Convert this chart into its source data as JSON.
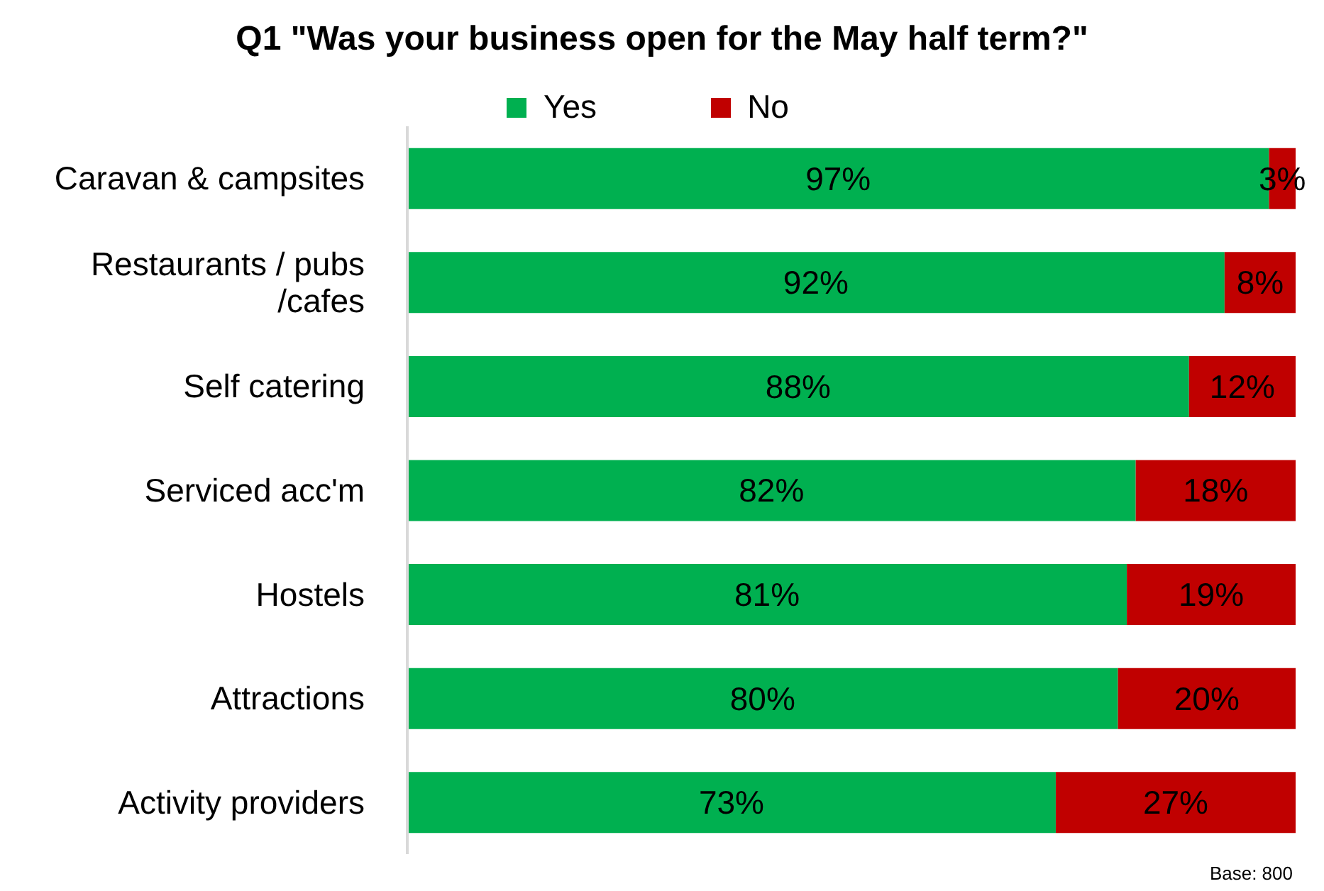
{
  "chart_data": {
    "type": "bar",
    "orientation": "horizontal",
    "stacked": true,
    "title": "Q1 \"Was your business open for the May half term?\"",
    "categories": [
      "Caravan & campsites",
      "Restaurants / pubs /cafes",
      "Self catering",
      "Serviced acc'm",
      "Hostels",
      "Attractions",
      "Activity providers"
    ],
    "series": [
      {
        "name": "Yes",
        "color": "#00b050",
        "values": [
          97,
          92,
          88,
          82,
          81,
          80,
          73
        ],
        "value_labels": [
          "97%",
          "92%",
          "88%",
          "82%",
          "81%",
          "80%",
          "73%"
        ]
      },
      {
        "name": "No",
        "color": "#c00000",
        "values": [
          3,
          8,
          12,
          18,
          19,
          20,
          27
        ],
        "value_labels": [
          "3%",
          "8%",
          "12%",
          "18%",
          "19%",
          "20%",
          "27%"
        ]
      }
    ],
    "xlim": [
      0,
      100
    ],
    "tick_labels": "y",
    "legend": "top",
    "grid": false,
    "annotations": [
      "Base: 800"
    ]
  }
}
